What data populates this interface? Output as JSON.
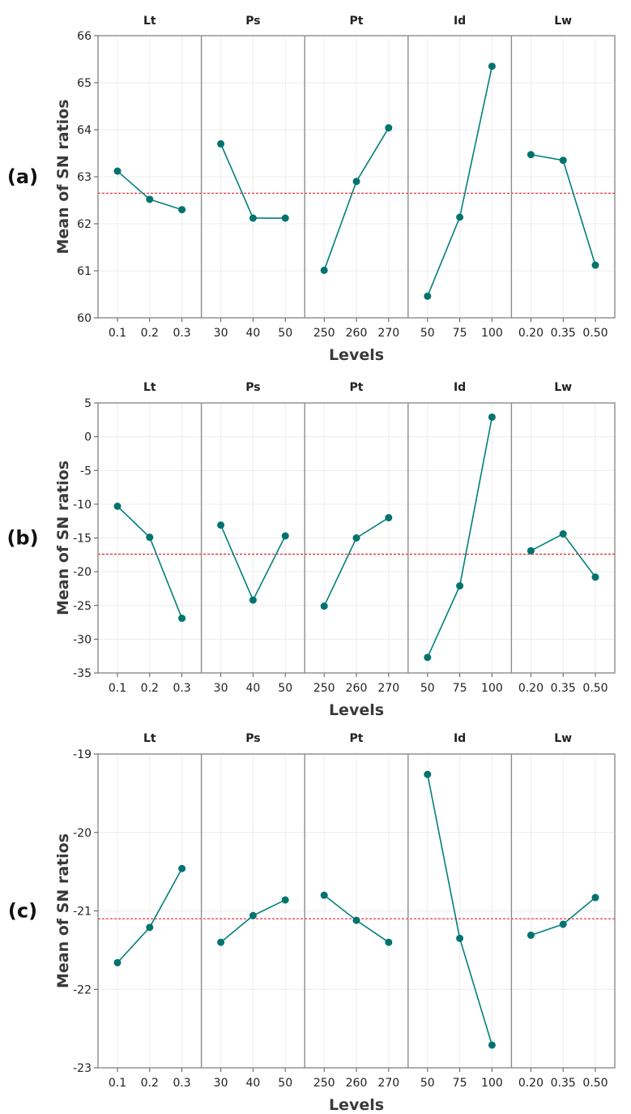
{
  "chart_data": [
    {
      "type": "line",
      "panel_label": "(a)",
      "ylabel": "Mean of SN ratios",
      "xlabel": "Levels",
      "ylim": [
        60,
        66
      ],
      "yticks": [
        60,
        61,
        62,
        63,
        64,
        65,
        66
      ],
      "ytick_labels": [
        "60",
        "61",
        "62",
        "63",
        "64",
        "65",
        "66"
      ],
      "reference_line": 62.65,
      "factors": [
        {
          "name": "Lt",
          "levels": [
            "0.1",
            "0.2",
            "0.3"
          ],
          "values": [
            63.12,
            62.52,
            62.3
          ]
        },
        {
          "name": "Ps",
          "levels": [
            "30",
            "40",
            "50"
          ],
          "values": [
            63.7,
            62.12,
            62.12
          ]
        },
        {
          "name": "Pt",
          "levels": [
            "250",
            "260",
            "270"
          ],
          "values": [
            61.01,
            62.9,
            64.04
          ]
        },
        {
          "name": "Id",
          "levels": [
            "50",
            "75",
            "100"
          ],
          "values": [
            60.46,
            62.14,
            65.35
          ]
        },
        {
          "name": "Lw",
          "levels": [
            "0.20",
            "0.35",
            "0.50"
          ],
          "values": [
            63.47,
            63.35,
            61.12
          ]
        }
      ]
    },
    {
      "type": "line",
      "panel_label": "(b)",
      "ylabel": "Mean of SN ratios",
      "xlabel": "Levels",
      "ylim": [
        -35,
        5
      ],
      "yticks": [
        -35,
        -30,
        -25,
        -20,
        -15,
        -10,
        -5,
        0,
        5
      ],
      "ytick_labels": [
        "-35",
        "-30",
        "-25",
        "-20",
        "-15",
        "-10",
        "-5",
        "0",
        "5"
      ],
      "reference_line": -17.4,
      "factors": [
        {
          "name": "Lt",
          "levels": [
            "0.1",
            "0.2",
            "0.3"
          ],
          "values": [
            -10.3,
            -14.9,
            -26.9
          ]
        },
        {
          "name": "Ps",
          "levels": [
            "30",
            "40",
            "50"
          ],
          "values": [
            -13.1,
            -24.2,
            -14.7
          ]
        },
        {
          "name": "Pt",
          "levels": [
            "250",
            "260",
            "270"
          ],
          "values": [
            -25.1,
            -15.0,
            -12.0
          ]
        },
        {
          "name": "Id",
          "levels": [
            "50",
            "75",
            "100"
          ],
          "values": [
            -32.7,
            -22.1,
            2.9
          ]
        },
        {
          "name": "Lw",
          "levels": [
            "0.20",
            "0.35",
            "0.50"
          ],
          "values": [
            -16.9,
            -14.4,
            -20.8
          ]
        }
      ]
    },
    {
      "type": "line",
      "panel_label": "(c)",
      "ylabel": "Mean of SN ratios",
      "xlabel": "Levels",
      "ylim": [
        -23,
        -19
      ],
      "yticks": [
        -23,
        -22,
        -21,
        -20,
        -19
      ],
      "ytick_labels": [
        "-23",
        "-22",
        "-21",
        "-20",
        "-19"
      ],
      "reference_line": -21.1,
      "factors": [
        {
          "name": "Lt",
          "levels": [
            "0.1",
            "0.2",
            "0.3"
          ],
          "values": [
            -21.66,
            -21.21,
            -20.46
          ]
        },
        {
          "name": "Ps",
          "levels": [
            "30",
            "40",
            "50"
          ],
          "values": [
            -21.4,
            -21.06,
            -20.86
          ]
        },
        {
          "name": "Pt",
          "levels": [
            "250",
            "260",
            "270"
          ],
          "values": [
            -20.8,
            -21.12,
            -21.4
          ]
        },
        {
          "name": "Id",
          "levels": [
            "50",
            "75",
            "100"
          ],
          "values": [
            -19.26,
            -21.35,
            -22.71
          ]
        },
        {
          "name": "Lw",
          "levels": [
            "0.20",
            "0.35",
            "0.50"
          ],
          "values": [
            -21.31,
            -21.17,
            -20.83
          ]
        }
      ]
    }
  ],
  "colors": {
    "series": "#00807a",
    "point": "#00736e",
    "reference": "#e8202a",
    "grid": "#ececec",
    "frame": "#8c8c8c"
  }
}
